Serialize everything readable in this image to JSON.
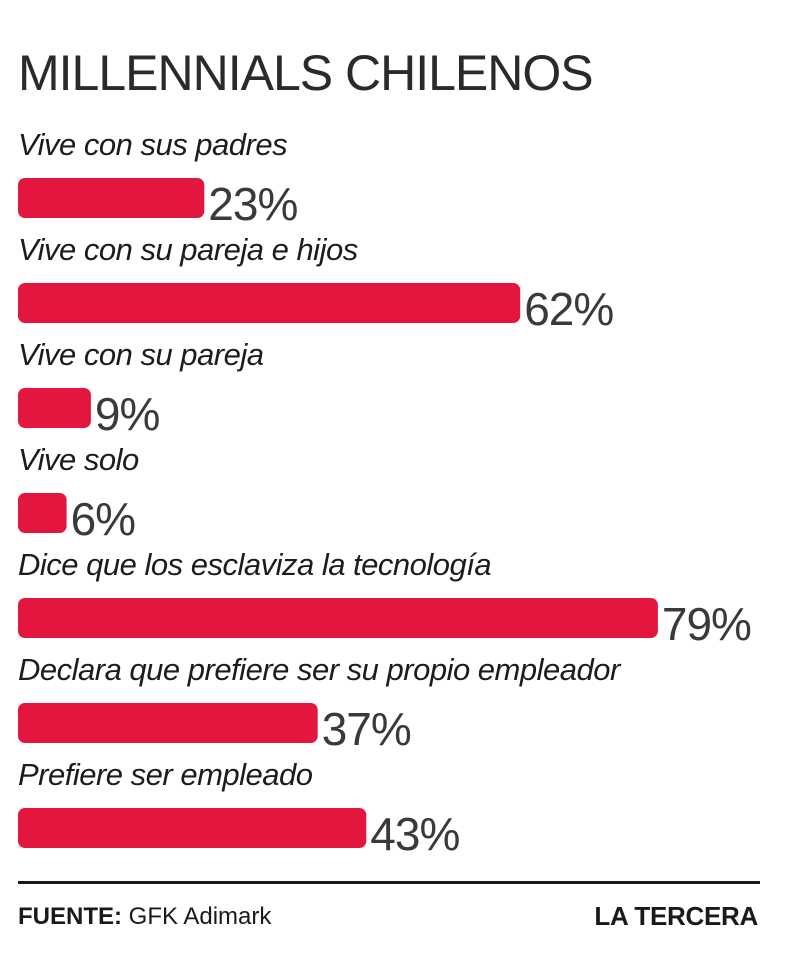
{
  "chart_data": {
    "type": "bar",
    "orientation": "horizontal",
    "title": "MILLENNIALS CHILENOS",
    "categories": [
      "Vive con sus padres",
      "Vive con su pareja e hijos",
      "Vive con su pareja",
      "Vive solo",
      "Dice que los esclaviza la tecnología",
      "Declara que prefiere ser su propio empleador",
      "Prefiere ser empleado"
    ],
    "values": [
      23,
      62,
      9,
      6,
      79,
      37,
      43
    ],
    "value_labels": [
      "23%",
      "62%",
      "9%",
      "6%",
      "79%",
      "37%",
      "43%"
    ],
    "unit": "%",
    "xlim": [
      0,
      100
    ],
    "grid": false,
    "bar_color": "#e3173d"
  },
  "footer": {
    "source_prefix": "FUENTE:",
    "source_name": "GFK Adimark",
    "publisher": "LA TERCERA"
  }
}
